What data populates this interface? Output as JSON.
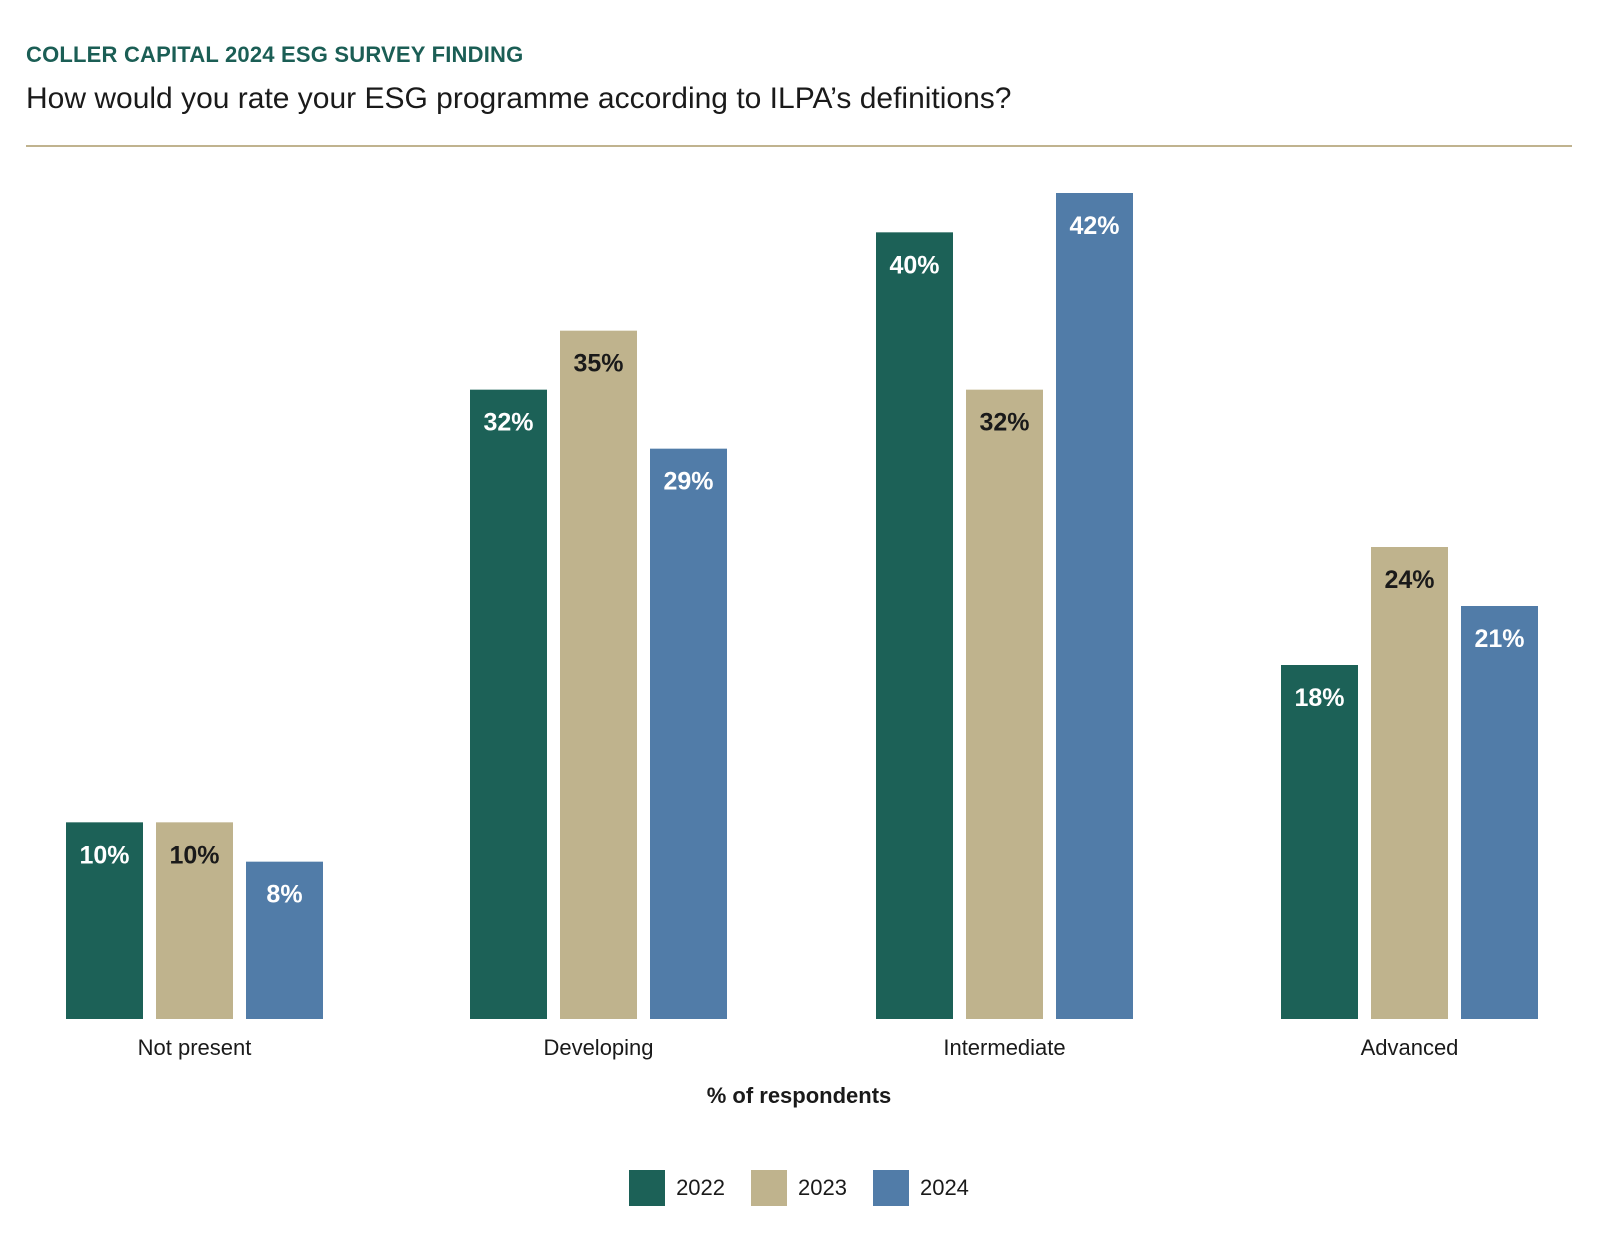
{
  "header": {
    "kicker": "COLLER CAPITAL 2024 ESG SURVEY FINDING",
    "question": "How would you rate your ESG programme according to ILPA’s definitions?"
  },
  "chart_data": {
    "type": "bar",
    "title": "How would you rate your ESG programme according to ILPA’s definitions?",
    "xlabel": "% of respondents",
    "ylabel": "",
    "ylim": [
      0,
      42
    ],
    "grid": false,
    "legend_position": "bottom-center",
    "categories": [
      "Not present",
      "Developing",
      "Intermediate",
      "Advanced"
    ],
    "series": [
      {
        "name": "2022",
        "color": "#1c6157",
        "label_color": "#ffffff",
        "values": [
          10,
          32,
          40,
          18
        ]
      },
      {
        "name": "2023",
        "color": "#bfb38d",
        "label_color": "#1a1a1a",
        "values": [
          10,
          35,
          32,
          24
        ]
      },
      {
        "name": "2024",
        "color": "#517ca8",
        "label_color": "#ffffff",
        "values": [
          8,
          29,
          42,
          21
        ]
      }
    ],
    "value_suffix": "%"
  }
}
